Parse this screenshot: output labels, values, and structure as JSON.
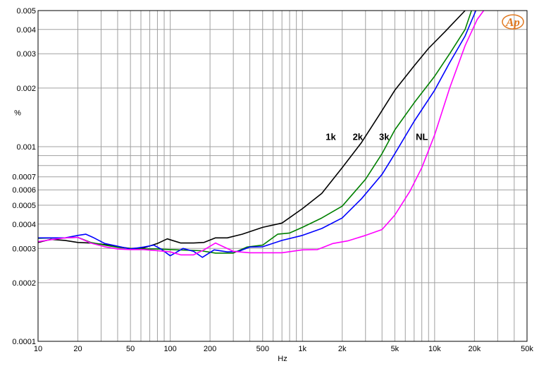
{
  "chart_data": {
    "type": "line",
    "xlabel": "Hz",
    "ylabel": "%",
    "xscale": "log",
    "yscale": "log",
    "xlim": [
      10,
      50000
    ],
    "ylim": [
      0.0001,
      0.005
    ],
    "grid": true,
    "x_ticks": [
      {
        "v": 10,
        "label": "10"
      },
      {
        "v": 20,
        "label": "20"
      },
      {
        "v": 50,
        "label": "50"
      },
      {
        "v": 100,
        "label": "100"
      },
      {
        "v": 200,
        "label": "200"
      },
      {
        "v": 500,
        "label": "500"
      },
      {
        "v": 1000,
        "label": "1k"
      },
      {
        "v": 2000,
        "label": "2k"
      },
      {
        "v": 5000,
        "label": "5k"
      },
      {
        "v": 10000,
        "label": "10k"
      },
      {
        "v": 20000,
        "label": "20k"
      },
      {
        "v": 50000,
        "label": "50k"
      }
    ],
    "y_ticks": [
      {
        "v": 0.005,
        "label": "0.005"
      },
      {
        "v": 0.004,
        "label": "0.004"
      },
      {
        "v": 0.003,
        "label": "0.003"
      },
      {
        "v": 0.002,
        "label": "0.002"
      },
      {
        "v": 0.001,
        "label": "0.001"
      },
      {
        "v": 0.0007,
        "label": "0.0007"
      },
      {
        "v": 0.0006,
        "label": "0.0006"
      },
      {
        "v": 0.0005,
        "label": "0.0005"
      },
      {
        "v": 0.0004,
        "label": "0.0004"
      },
      {
        "v": 0.0003,
        "label": "0.0003"
      },
      {
        "v": 0.0002,
        "label": "0.0002"
      },
      {
        "v": 0.0001,
        "label": "0.0001"
      }
    ],
    "series": [
      {
        "name": "1k",
        "color": "#000000",
        "label_at": [
          1500,
          0.00108
        ],
        "points": [
          [
            10,
            0.000322
          ],
          [
            12.5,
            0.000334
          ],
          [
            16,
            0.00033
          ],
          [
            20,
            0.000322
          ],
          [
            25,
            0.00032
          ],
          [
            32,
            0.000314
          ],
          [
            40,
            0.000306
          ],
          [
            50,
            0.0003
          ],
          [
            63,
            0.000302
          ],
          [
            80,
            0.000318
          ],
          [
            95,
            0.000336
          ],
          [
            120,
            0.00032
          ],
          [
            150,
            0.00032
          ],
          [
            180,
            0.000322
          ],
          [
            220,
            0.00034
          ],
          [
            270,
            0.00034
          ],
          [
            350,
            0.000355
          ],
          [
            500,
            0.000385
          ],
          [
            700,
            0.000405
          ],
          [
            1000,
            0.00048
          ],
          [
            1400,
            0.000575
          ],
          [
            2000,
            0.00078
          ],
          [
            2800,
            0.00105
          ],
          [
            3800,
            0.00145
          ],
          [
            5000,
            0.00195
          ],
          [
            7000,
            0.0026
          ],
          [
            9000,
            0.0032
          ],
          [
            12000,
            0.0039
          ],
          [
            17000,
            0.005
          ]
        ]
      },
      {
        "name": "2k",
        "color": "#008000",
        "label_at": [
          2400,
          0.00108
        ],
        "points": [
          [
            10,
            0.000338
          ],
          [
            13,
            0.00034
          ],
          [
            16,
            0.00034
          ],
          [
            20,
            0.000342
          ],
          [
            25,
            0.000322
          ],
          [
            32,
            0.000312
          ],
          [
            40,
            0.000304
          ],
          [
            50,
            0.0003
          ],
          [
            63,
            0.000298
          ],
          [
            80,
            0.000298
          ],
          [
            100,
            0.000296
          ],
          [
            130,
            0.000294
          ],
          [
            170,
            0.000292
          ],
          [
            220,
            0.000284
          ],
          [
            300,
            0.000284
          ],
          [
            380,
            0.000305
          ],
          [
            500,
            0.000312
          ],
          [
            650,
            0.000355
          ],
          [
            800,
            0.00036
          ],
          [
            1000,
            0.000385
          ],
          [
            1400,
            0.00043
          ],
          [
            2000,
            0.000495
          ],
          [
            3000,
            0.00068
          ],
          [
            4000,
            0.00092
          ],
          [
            5000,
            0.00122
          ],
          [
            7000,
            0.00168
          ],
          [
            10000,
            0.0023
          ],
          [
            13000,
            0.003
          ],
          [
            17000,
            0.004
          ],
          [
            19000,
            0.005
          ]
        ]
      },
      {
        "name": "3k",
        "color": "#0000ff",
        "label_at": [
          3800,
          0.00108
        ],
        "points": [
          [
            10,
            0.00034
          ],
          [
            13,
            0.00034
          ],
          [
            16,
            0.00034
          ],
          [
            20,
            0.00035
          ],
          [
            23,
            0.000355
          ],
          [
            26,
            0.000342
          ],
          [
            32,
            0.000318
          ],
          [
            40,
            0.000308
          ],
          [
            50,
            0.000298
          ],
          [
            63,
            0.000305
          ],
          [
            75,
            0.000312
          ],
          [
            85,
            0.000298
          ],
          [
            100,
            0.000275
          ],
          [
            125,
            0.0003
          ],
          [
            150,
            0.00029
          ],
          [
            175,
            0.00027
          ],
          [
            215,
            0.000295
          ],
          [
            270,
            0.000288
          ],
          [
            330,
            0.00029
          ],
          [
            400,
            0.000305
          ],
          [
            500,
            0.000306
          ],
          [
            700,
            0.00033
          ],
          [
            1000,
            0.00035
          ],
          [
            1400,
            0.00038
          ],
          [
            2000,
            0.00043
          ],
          [
            2800,
            0.00054
          ],
          [
            4000,
            0.00072
          ],
          [
            5000,
            0.00092
          ],
          [
            7000,
            0.00135
          ],
          [
            10000,
            0.00195
          ],
          [
            13000,
            0.0027
          ],
          [
            17000,
            0.0037
          ],
          [
            20500,
            0.005
          ]
        ]
      },
      {
        "name": "NL",
        "color": "#ff00ff",
        "label_at": [
          7200,
          0.00108
        ],
        "points": [
          [
            10,
            0.000325
          ],
          [
            13,
            0.000334
          ],
          [
            16,
            0.00034
          ],
          [
            20,
            0.000342
          ],
          [
            25,
            0.00032
          ],
          [
            32,
            0.000306
          ],
          [
            40,
            0.000298
          ],
          [
            50,
            0.000296
          ],
          [
            63,
            0.000296
          ],
          [
            80,
            0.000292
          ],
          [
            100,
            0.000288
          ],
          [
            120,
            0.000278
          ],
          [
            150,
            0.000278
          ],
          [
            180,
            0.000295
          ],
          [
            220,
            0.00032
          ],
          [
            300,
            0.00029
          ],
          [
            400,
            0.000285
          ],
          [
            500,
            0.000285
          ],
          [
            700,
            0.000285
          ],
          [
            1000,
            0.000295
          ],
          [
            1300,
            0.000296
          ],
          [
            1700,
            0.000318
          ],
          [
            2200,
            0.000328
          ],
          [
            3000,
            0.00035
          ],
          [
            4000,
            0.000375
          ],
          [
            5000,
            0.000445
          ],
          [
            6500,
            0.00059
          ],
          [
            8000,
            0.00078
          ],
          [
            10000,
            0.00115
          ],
          [
            13000,
            0.002
          ],
          [
            17000,
            0.0033
          ],
          [
            21000,
            0.0045
          ],
          [
            23500,
            0.005
          ]
        ]
      }
    ]
  },
  "logo": {
    "text": "Ap",
    "color": "#e07820"
  }
}
